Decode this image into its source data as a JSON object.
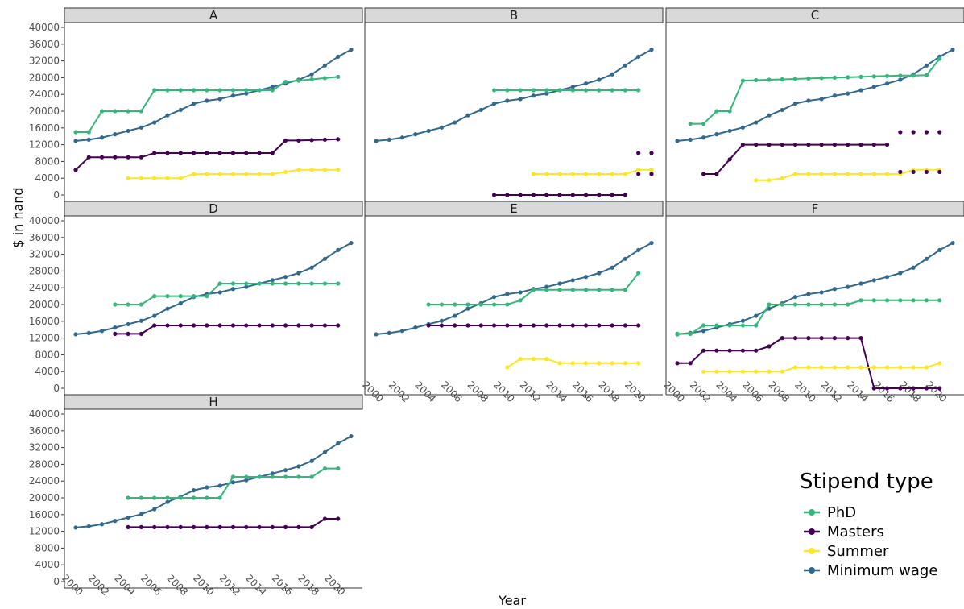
{
  "chart_data": {
    "type": "line",
    "xlabel": "Year",
    "ylabel": "$ in hand",
    "ylim": [
      0,
      40000
    ],
    "y_ticks": [
      0,
      4000,
      8000,
      12000,
      16000,
      20000,
      24000,
      28000,
      32000,
      36000,
      40000
    ],
    "x_ticks": [
      2000,
      2002,
      2004,
      2006,
      2008,
      2010,
      2012,
      2014,
      2016,
      2018,
      2020
    ],
    "xlim": [
      2000,
      2021
    ],
    "grid": false,
    "legend": {
      "title": "Stipend type",
      "position": "bottom-right",
      "entries": [
        "PhD",
        "Masters",
        "Summer",
        "Minimum wage"
      ]
    },
    "colors": {
      "PhD": "#35b779",
      "Masters": "#440154",
      "Summer": "#fde725",
      "Minimum wage": "#31688e"
    },
    "minimum_wage": {
      "x": [
        2000,
        2001,
        2002,
        2003,
        2004,
        2005,
        2006,
        2007,
        2008,
        2009,
        2010,
        2011,
        2012,
        2013,
        2014,
        2015,
        2016,
        2017,
        2018,
        2019,
        2020,
        2021
      ],
      "y": [
        12900,
        13200,
        13700,
        14500,
        15300,
        16100,
        17300,
        19000,
        20300,
        21800,
        22500,
        22900,
        23700,
        24200,
        25000,
        25800,
        26600,
        27500,
        28800,
        30900,
        33000,
        34700
      ]
    },
    "panels": [
      {
        "label": "A",
        "series": [
          {
            "name": "PhD",
            "x": [
              2000,
              2001,
              2002,
              2003,
              2004,
              2005,
              2006,
              2007,
              2008,
              2009,
              2010,
              2011,
              2012,
              2013,
              2014,
              2015,
              2016,
              2017,
              2018,
              2019,
              2020
            ],
            "y": [
              15000,
              15000,
              20000,
              20000,
              20000,
              20000,
              25000,
              25000,
              25000,
              25000,
              25000,
              25000,
              25000,
              25000,
              25000,
              25000,
              27000,
              27300,
              27600,
              27900,
              28200
            ]
          },
          {
            "name": "Masters",
            "x": [
              2000,
              2001,
              2002,
              2003,
              2004,
              2005,
              2006,
              2007,
              2008,
              2009,
              2010,
              2011,
              2012,
              2013,
              2014,
              2015,
              2016,
              2017,
              2018,
              2019,
              2020
            ],
            "y": [
              6000,
              9000,
              9000,
              9000,
              9000,
              9000,
              10000,
              10000,
              10000,
              10000,
              10000,
              10000,
              10000,
              10000,
              10000,
              10000,
              13000,
              13000,
              13100,
              13200,
              13300
            ]
          },
          {
            "name": "Summer",
            "x": [
              2004,
              2005,
              2006,
              2007,
              2008,
              2009,
              2010,
              2011,
              2012,
              2013,
              2014,
              2015,
              2016,
              2017,
              2018,
              2019,
              2020
            ],
            "y": [
              4000,
              4000,
              4000,
              4000,
              4000,
              5000,
              5000,
              5000,
              5000,
              5000,
              5000,
              5000,
              5500,
              6000,
              6000,
              6000,
              6000
            ]
          }
        ]
      },
      {
        "label": "B",
        "series": [
          {
            "name": "PhD",
            "x": [
              2009,
              2010,
              2011,
              2012,
              2013,
              2014,
              2015,
              2016,
              2017,
              2018,
              2019,
              2020
            ],
            "y": [
              25000,
              25000,
              25000,
              25000,
              25000,
              25000,
              25000,
              25000,
              25000,
              25000,
              25000,
              25000
            ]
          },
          {
            "name": "Masters",
            "x": [
              2009,
              2010,
              2011,
              2012,
              2013,
              2014,
              2015,
              2016,
              2017,
              2018,
              2019
            ],
            "y": [
              0,
              0,
              0,
              0,
              0,
              0,
              0,
              0,
              0,
              0,
              0
            ]
          },
          {
            "name": "Summer",
            "x": [
              2012,
              2013,
              2014,
              2015,
              2016,
              2017,
              2018,
              2019,
              2020,
              2021
            ],
            "y": [
              5000,
              5000,
              5000,
              5000,
              5000,
              5000,
              5000,
              5000,
              6000,
              6000
            ]
          },
          {
            "name": "Masters",
            "points_only": true,
            "x": [
              2020,
              2021,
              2020,
              2021
            ],
            "y": [
              10000,
              10000,
              5000,
              5000
            ]
          }
        ]
      },
      {
        "label": "C",
        "series": [
          {
            "name": "PhD",
            "x": [
              2001,
              2002,
              2003,
              2004,
              2005,
              2006,
              2007,
              2008,
              2009,
              2010,
              2011,
              2012,
              2013,
              2014,
              2015,
              2016,
              2017,
              2018,
              2019,
              2020
            ],
            "y": [
              17000,
              17000,
              20000,
              20000,
              27300,
              27400,
              27500,
              27600,
              27700,
              27800,
              27900,
              28000,
              28100,
              28200,
              28300,
              28400,
              28500,
              28500,
              28600,
              32500
            ]
          },
          {
            "name": "Masters",
            "x": [
              2002,
              2003,
              2004,
              2005,
              2006,
              2007,
              2008,
              2009,
              2010,
              2011,
              2012,
              2013,
              2014,
              2015,
              2016
            ],
            "y": [
              5000,
              5000,
              8500,
              12000,
              12000,
              12000,
              12000,
              12000,
              12000,
              12000,
              12000,
              12000,
              12000,
              12000,
              12000
            ]
          },
          {
            "name": "Summer",
            "x": [
              2006,
              2007,
              2008,
              2009,
              2010,
              2011,
              2012,
              2013,
              2014,
              2015,
              2016,
              2017,
              2018,
              2019,
              2020
            ],
            "y": [
              3500,
              3500,
              4000,
              5000,
              5000,
              5000,
              5000,
              5000,
              5000,
              5000,
              5000,
              5000,
              6000,
              6000,
              6000
            ]
          },
          {
            "name": "Masters",
            "points_only": true,
            "x": [
              2017,
              2018,
              2019,
              2020,
              2017,
              2018,
              2019,
              2020
            ],
            "y": [
              15000,
              15000,
              15000,
              15000,
              5500,
              5500,
              5500,
              5500
            ]
          }
        ]
      },
      {
        "label": "D",
        "series": [
          {
            "name": "PhD",
            "x": [
              2003,
              2004,
              2005,
              2006,
              2007,
              2008,
              2009,
              2010,
              2011,
              2012,
              2013,
              2014,
              2015,
              2016,
              2017,
              2018,
              2019,
              2020
            ],
            "y": [
              20000,
              20000,
              20000,
              22000,
              22000,
              22000,
              22000,
              22000,
              25000,
              25000,
              25000,
              25000,
              25000,
              25000,
              25000,
              25000,
              25000,
              25000
            ]
          },
          {
            "name": "Masters",
            "x": [
              2003,
              2004,
              2005,
              2006,
              2007,
              2008,
              2009,
              2010,
              2011,
              2012,
              2013,
              2014,
              2015,
              2016,
              2017,
              2018,
              2019,
              2020
            ],
            "y": [
              13000,
              13000,
              13000,
              15000,
              15000,
              15000,
              15000,
              15000,
              15000,
              15000,
              15000,
              15000,
              15000,
              15000,
              15000,
              15000,
              15000,
              15000
            ]
          }
        ]
      },
      {
        "label": "E",
        "series": [
          {
            "name": "PhD",
            "x": [
              2004,
              2005,
              2006,
              2007,
              2008,
              2009,
              2010,
              2011,
              2012,
              2013,
              2014,
              2015,
              2016,
              2017,
              2018,
              2019,
              2020
            ],
            "y": [
              20000,
              20000,
              20000,
              20000,
              20000,
              20000,
              20000,
              21000,
              23500,
              23500,
              23500,
              23500,
              23500,
              23500,
              23500,
              23500,
              27500
            ]
          },
          {
            "name": "Masters",
            "x": [
              2004,
              2005,
              2006,
              2007,
              2008,
              2009,
              2010,
              2011,
              2012,
              2013,
              2014,
              2015,
              2016,
              2017,
              2018,
              2019,
              2020
            ],
            "y": [
              15000,
              15000,
              15000,
              15000,
              15000,
              15000,
              15000,
              15000,
              15000,
              15000,
              15000,
              15000,
              15000,
              15000,
              15000,
              15000,
              15000
            ]
          },
          {
            "name": "Summer",
            "x": [
              2010,
              2011,
              2012,
              2013,
              2014,
              2015,
              2016,
              2017,
              2018,
              2019,
              2020
            ],
            "y": [
              5000,
              7000,
              7000,
              7000,
              6000,
              6000,
              6000,
              6000,
              6000,
              6000,
              6000
            ]
          }
        ]
      },
      {
        "label": "F",
        "series": [
          {
            "name": "PhD",
            "x": [
              2000,
              2001,
              2002,
              2003,
              2004,
              2005,
              2006,
              2007,
              2008,
              2009,
              2010,
              2011,
              2012,
              2013,
              2014,
              2015,
              2016,
              2017,
              2018,
              2019,
              2020
            ],
            "y": [
              13000,
              13000,
              15000,
              15000,
              15000,
              15000,
              15000,
              20000,
              20000,
              20000,
              20000,
              20000,
              20000,
              20000,
              21000,
              21000,
              21000,
              21000,
              21000,
              21000,
              21000
            ]
          },
          {
            "name": "Masters",
            "x": [
              2000,
              2001,
              2002,
              2003,
              2004,
              2005,
              2006,
              2007,
              2008,
              2009,
              2010,
              2011,
              2012,
              2013,
              2014,
              2015,
              2016,
              2017,
              2018,
              2019,
              2020
            ],
            "y": [
              6000,
              6000,
              9000,
              9000,
              9000,
              9000,
              9000,
              10000,
              12000,
              12000,
              12000,
              12000,
              12000,
              12000,
              12000,
              0,
              0,
              0,
              0,
              0,
              0
            ]
          },
          {
            "name": "Summer",
            "x": [
              2002,
              2003,
              2004,
              2005,
              2006,
              2007,
              2008,
              2009,
              2010,
              2011,
              2012,
              2013,
              2014,
              2015,
              2016,
              2017,
              2018,
              2019,
              2020
            ],
            "y": [
              4000,
              4000,
              4000,
              4000,
              4000,
              4000,
              4000,
              5000,
              5000,
              5000,
              5000,
              5000,
              5000,
              5000,
              5000,
              5000,
              5000,
              5000,
              6000
            ]
          }
        ]
      },
      {
        "label": "H",
        "series": [
          {
            "name": "PhD",
            "x": [
              2004,
              2005,
              2006,
              2007,
              2008,
              2009,
              2010,
              2011,
              2012,
              2013,
              2014,
              2015,
              2016,
              2017,
              2018,
              2019,
              2020
            ],
            "y": [
              20000,
              20000,
              20000,
              20000,
              20000,
              20000,
              20000,
              20000,
              25000,
              25000,
              25000,
              25000,
              25000,
              25000,
              25000,
              27000,
              27000
            ]
          },
          {
            "name": "Masters",
            "x": [
              2004,
              2005,
              2006,
              2007,
              2008,
              2009,
              2010,
              2011,
              2012,
              2013,
              2014,
              2015,
              2016,
              2017,
              2018,
              2019,
              2020
            ],
            "y": [
              13000,
              13000,
              13000,
              13000,
              13000,
              13000,
              13000,
              13000,
              13000,
              13000,
              13000,
              13000,
              13000,
              13000,
              13000,
              15000,
              15000
            ]
          }
        ]
      }
    ]
  }
}
